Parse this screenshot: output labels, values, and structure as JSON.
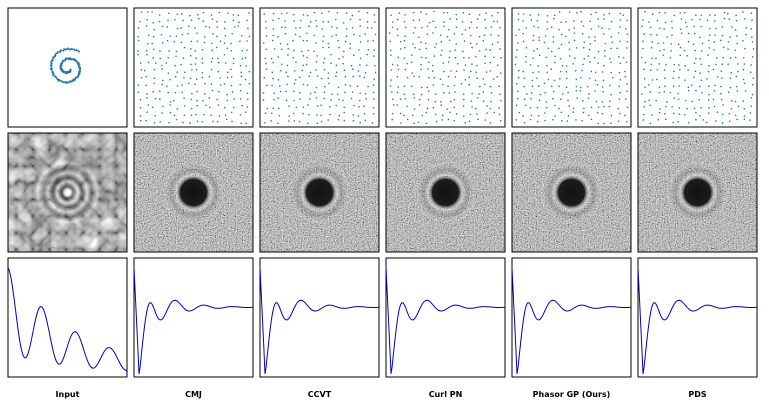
{
  "figure": {
    "columns": [
      "Input",
      "CMJ",
      "CCVT",
      "Curl PN",
      "Phasor GP (Ours)",
      "PDS"
    ]
  }
}
